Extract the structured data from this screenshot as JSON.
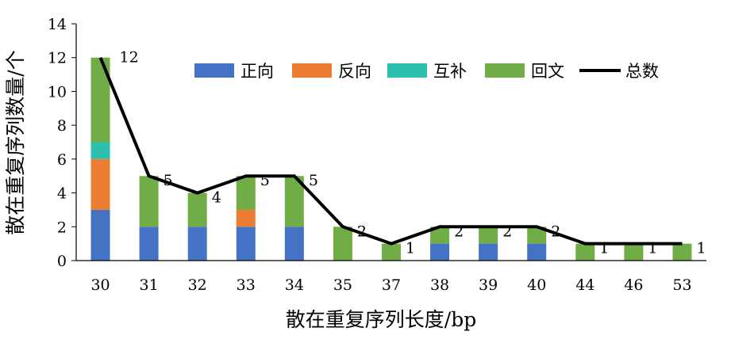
{
  "chart_data": {
    "type": "bar",
    "stacked": true,
    "xlabel": "散在重复序列长度/bp",
    "ylabel": "散在重复序列数量/个",
    "ylim": [
      0,
      14
    ],
    "yticks": [
      0,
      2,
      4,
      6,
      8,
      10,
      12,
      14
    ],
    "grid": false,
    "legend_position": "top-right",
    "categories": [
      "30",
      "31",
      "32",
      "33",
      "34",
      "35",
      "37",
      "38",
      "39",
      "40",
      "44",
      "46",
      "53"
    ],
    "series": [
      {
        "name": "正向",
        "color": "#4472C4",
        "values": [
          3,
          2,
          2,
          2,
          2,
          0,
          0,
          1,
          1,
          1,
          0,
          0,
          0
        ]
      },
      {
        "name": "反向",
        "color": "#ED7D31",
        "values": [
          3,
          0,
          0,
          1,
          0,
          0,
          0,
          0,
          0,
          0,
          0,
          0,
          0
        ]
      },
      {
        "name": "互补",
        "color": "#2FBFAE",
        "values": [
          1,
          0,
          0,
          0,
          0,
          0,
          0,
          0,
          0,
          0,
          0,
          0,
          0
        ]
      },
      {
        "name": "回文",
        "color": "#70AD47",
        "values": [
          5,
          3,
          2,
          2,
          3,
          2,
          1,
          1,
          1,
          1,
          1,
          1,
          1
        ]
      }
    ],
    "total": {
      "name": "总数",
      "color": "#000000",
      "values": [
        12,
        5,
        4,
        5,
        5,
        2,
        1,
        2,
        2,
        2,
        1,
        1,
        1
      ]
    }
  }
}
